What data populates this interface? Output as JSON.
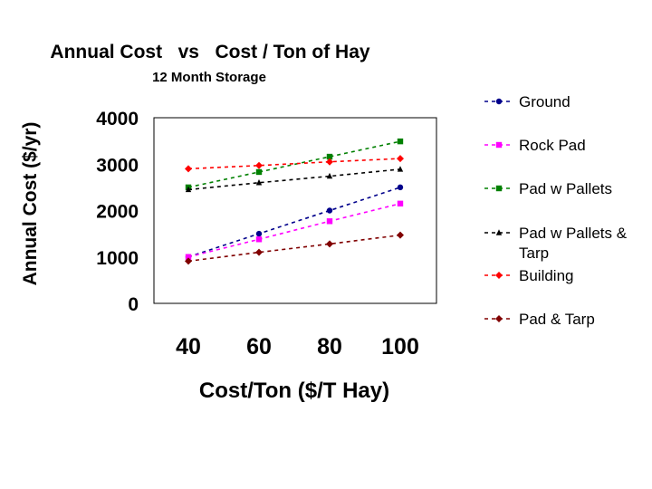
{
  "chart_data": {
    "type": "line",
    "title": "Annual Cost   vs   Cost / Ton of Hay",
    "subtitle": "12 Month Storage",
    "xlabel": "Cost/Ton ($/T Hay)",
    "ylabel": "Annual Cost ($/yr)",
    "categories": [
      "40",
      "60",
      "80",
      "100"
    ],
    "ylim": [
      0,
      4000
    ],
    "yticks": [
      "0",
      "1000",
      "2000",
      "3000",
      "4000"
    ],
    "grid": false,
    "legend_position": "right",
    "series": [
      {
        "name": "Ground",
        "color": "#00008b",
        "marker": "circle",
        "values": [
          1000,
          1500,
          2000,
          2500
        ]
      },
      {
        "name": "Rock Pad",
        "color": "#ff00ff",
        "marker": "square",
        "values": [
          1000,
          1380,
          1770,
          2150
        ]
      },
      {
        "name": "Pad w Pallets",
        "color": "#008000",
        "marker": "square",
        "values": [
          2500,
          2830,
          3160,
          3490
        ]
      },
      {
        "name": "Pad w Pallets & Tarp",
        "color": "#000000",
        "marker": "triangle",
        "values": [
          2450,
          2600,
          2740,
          2890
        ]
      },
      {
        "name": "Building",
        "color": "#ff0000",
        "marker": "diamond",
        "values": [
          2900,
          2970,
          3050,
          3120
        ]
      },
      {
        "name": "Pad & Tarp",
        "color": "#800000",
        "marker": "diamond",
        "values": [
          910,
          1100,
          1280,
          1470
        ]
      }
    ]
  }
}
